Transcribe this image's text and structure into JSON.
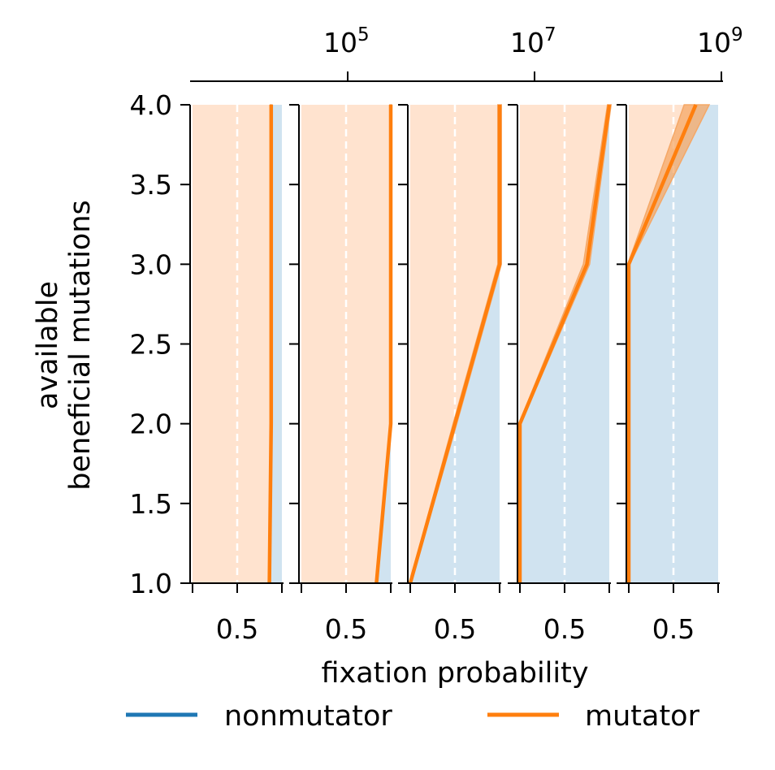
{
  "chart_data": {
    "type": "area",
    "xlabel": "fixation probability",
    "ylabel_line1": "available",
    "ylabel_line2": "beneficial mutations",
    "ylim": [
      1.0,
      4.0
    ],
    "y_ticks": [
      "1.0",
      "1.5",
      "2.0",
      "2.5",
      "3.0",
      "3.5",
      "4.0"
    ],
    "x_ticks_per_panel": [
      0,
      0.5,
      1
    ],
    "x_tick_label": "0.5",
    "top_axis": {
      "scale": "log",
      "tick_labels": [
        {
          "base": "10",
          "exp": "5"
        },
        {
          "base": "10",
          "exp": "7"
        },
        {
          "base": "10",
          "exp": "9"
        }
      ]
    },
    "legend": {
      "placement": "bottom",
      "entries": [
        {
          "name": "nonmutator",
          "color": "#1f77b4"
        },
        {
          "name": "mutator",
          "color": "#ff7f0e"
        }
      ]
    },
    "colors": {
      "nonmutator": "#1f77b4",
      "mutator": "#ff7f0e",
      "nonmutator_fill": "#d0e3f0",
      "mutator_fill": "#ffe3cf",
      "band": "#f5a867",
      "gridline": "#ffffff"
    },
    "y_values": [
      1,
      2,
      3,
      4
    ],
    "panels": [
      {
        "mutator_fraction": [
          0.86,
          0.88,
          0.88,
          0.88
        ],
        "band": [
          [
            0.85,
            0.87
          ],
          [
            0.87,
            0.89
          ],
          [
            0.87,
            0.89
          ],
          [
            0.87,
            0.89
          ]
        ]
      },
      {
        "mutator_fraction": [
          0.84,
          1.0,
          1.0,
          1.0
        ],
        "band": [
          [
            0.83,
            0.85
          ],
          [
            0.99,
            1.01
          ],
          [
            0.99,
            1.01
          ],
          [
            0.99,
            1.01
          ]
        ]
      },
      {
        "mutator_fraction": [
          0.0,
          0.5,
          1.0,
          1.0
        ],
        "band": [
          [
            -0.01,
            0.01
          ],
          [
            0.48,
            0.52
          ],
          [
            0.98,
            1.02
          ],
          [
            0.98,
            1.02
          ]
        ]
      },
      {
        "mutator_fraction": [
          0.0,
          0.0,
          0.75,
          1.0
        ],
        "band": [
          [
            -0.01,
            0.01
          ],
          [
            -0.01,
            0.01
          ],
          [
            0.71,
            0.78
          ],
          [
            0.98,
            1.02
          ]
        ]
      },
      {
        "mutator_fraction": [
          0.0,
          0.0,
          0.0,
          0.75
        ],
        "band": [
          [
            -0.01,
            0.01
          ],
          [
            -0.01,
            0.01
          ],
          [
            -0.01,
            0.01
          ],
          [
            0.62,
            0.9
          ]
        ]
      }
    ]
  }
}
